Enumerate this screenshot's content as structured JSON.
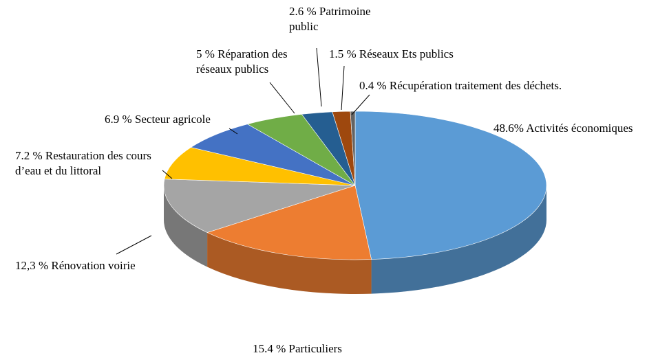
{
  "chart_data": {
    "type": "pie",
    "style": "3d",
    "title": "",
    "legend": "none",
    "slices": [
      {
        "key": "activites-economiques",
        "value": 48.6,
        "label": "48.6% Activités économiques",
        "color": "#5B9BD5"
      },
      {
        "key": "particuliers",
        "value": 15.4,
        "label": "15.4 % Particuliers",
        "color": "#ED7D31"
      },
      {
        "key": "renovation-voirie",
        "value": 12.3,
        "label": "12,3 % Rénovation voirie",
        "color": "#A5A5A5"
      },
      {
        "key": "restauration-cours-eau",
        "value": 7.2,
        "label": "7.2 % Restauration des cours\nd’eau et du littoral",
        "color": "#FFC000"
      },
      {
        "key": "secteur-agricole",
        "value": 6.9,
        "label": "6.9 % Secteur agricole",
        "color": "#4472C4"
      },
      {
        "key": "reparation-reseaux",
        "value": 5.0,
        "label": "5 % Réparation des\nréseaux publics",
        "color": "#70AD47"
      },
      {
        "key": "patrimoine-public",
        "value": 2.6,
        "label": "2.6 % Patrimoine\npublic",
        "color": "#255E91"
      },
      {
        "key": "reseaux-ets-publics",
        "value": 1.5,
        "label": "1.5 % Réseaux Ets publics",
        "color": "#9E480E"
      },
      {
        "key": "recuperation-dechets",
        "value": 0.4,
        "label": "0.4 % Récupération traitement des déchets.",
        "color": "#636363"
      }
    ]
  }
}
